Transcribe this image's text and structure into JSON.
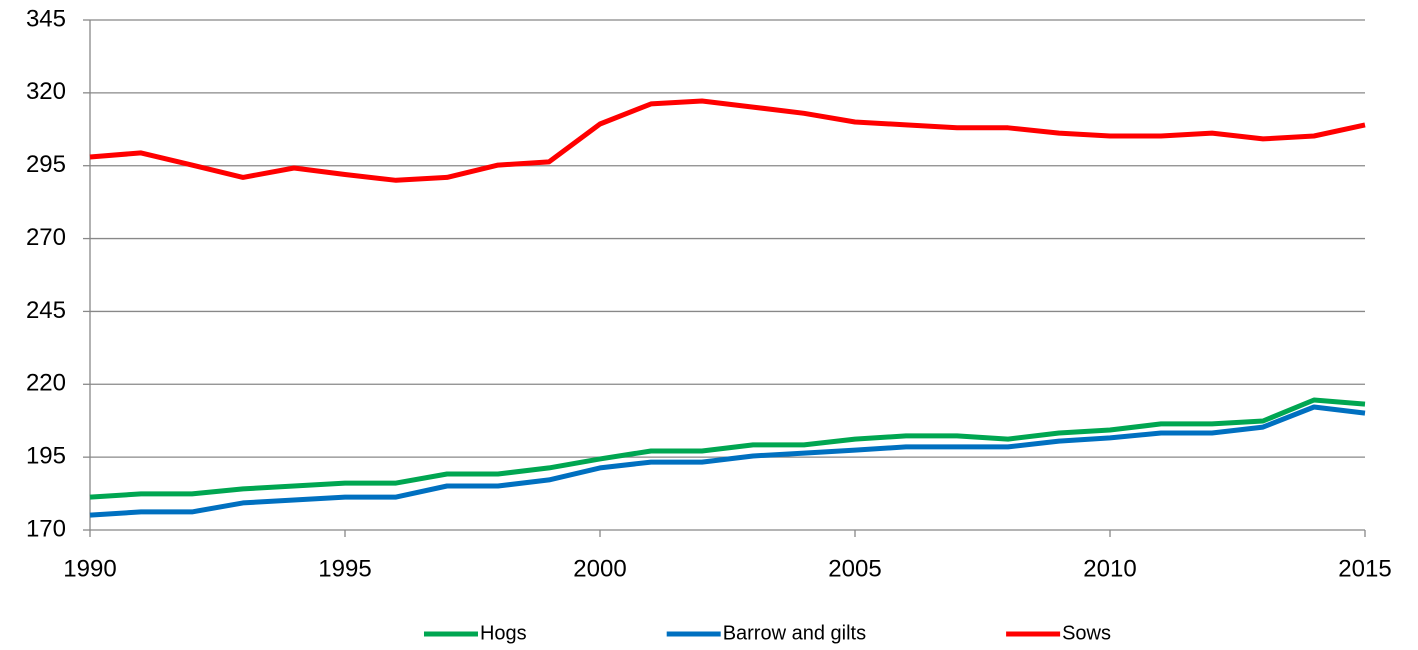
{
  "chart_data": {
    "type": "line",
    "x": [
      1990,
      1991,
      1992,
      1993,
      1994,
      1995,
      1996,
      1997,
      1998,
      1999,
      2000,
      2001,
      2002,
      2003,
      2004,
      2005,
      2006,
      2007,
      2008,
      2009,
      2010,
      2011,
      2012,
      2013,
      2014,
      2015
    ],
    "series": [
      {
        "name": "Hogs",
        "color": "#00a651",
        "values": [
          181.3,
          182.4,
          182.4,
          184.1,
          185.1,
          186.1,
          186.1,
          189.2,
          189.2,
          191.3,
          194.4,
          197.1,
          197.1,
          199.2,
          199.2,
          201.2,
          202.3,
          202.3,
          201.2,
          203.3,
          204.3,
          206.4,
          206.4,
          207.4,
          214.6,
          213.2
        ]
      },
      {
        "name": "Barrow and gilts",
        "color": "#0070c0",
        "values": [
          175.1,
          176.2,
          176.2,
          179.3,
          180.3,
          181.3,
          181.3,
          185.1,
          185.1,
          187.2,
          191.3,
          193.3,
          193.3,
          195.4,
          196.4,
          197.4,
          198.5,
          198.5,
          198.5,
          200.5,
          201.6,
          203.3,
          203.3,
          205.3,
          212.2,
          210.1
        ]
      },
      {
        "name": "Sows",
        "color": "#ff0000",
        "values": [
          298,
          299.4,
          295.2,
          291,
          294.2,
          292,
          290,
          291,
          295.2,
          296.3,
          309.3,
          316.2,
          317.2,
          315.1,
          313,
          310,
          309,
          308,
          308,
          306.2,
          305.2,
          305.2,
          306.2,
          304.2,
          305.2,
          309
        ]
      }
    ],
    "xlim": [
      1990,
      2015
    ],
    "xticks": [
      1990,
      1995,
      2000,
      2005,
      2010,
      2015
    ],
    "ylim": [
      170,
      345
    ],
    "yticks": [
      170,
      195,
      220,
      245,
      270,
      295,
      320,
      345
    ],
    "grid": true,
    "legend": "bottom"
  }
}
